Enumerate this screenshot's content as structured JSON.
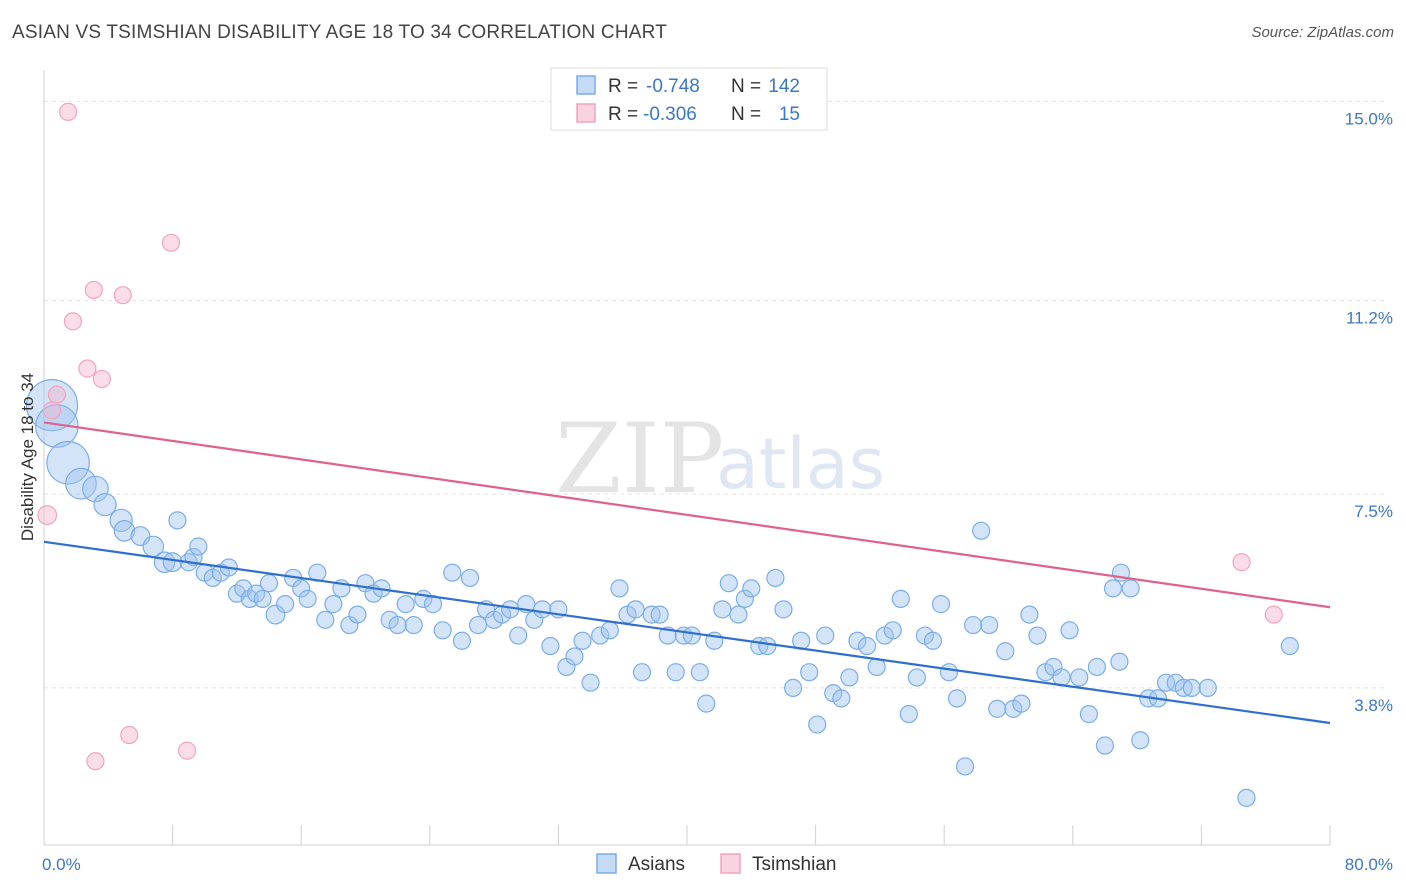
{
  "header": {
    "title": "ASIAN VS TSIMSHIAN DISABILITY AGE 18 TO 34 CORRELATION CHART",
    "source": "Source: ZipAtlas.com"
  },
  "watermark": {
    "zip": "ZIP",
    "atlas": "atlas"
  },
  "legend": {
    "r_label": "R =",
    "n_label": "N =",
    "rows": [
      {
        "r": "-0.748",
        "n": "142",
        "color": "#7aaee8"
      },
      {
        "r": "-0.306",
        "n": "15",
        "color": "#f2a4bd"
      }
    ]
  },
  "chart_data": {
    "type": "scatter",
    "title": "ASIAN VS TSIMSHIAN DISABILITY AGE 18 TO 34 CORRELATION CHART",
    "xlabel": "",
    "ylabel": "Disability Age 18 to 34",
    "xlim": [
      0,
      80
    ],
    "ylim": [
      0.8,
      15.6
    ],
    "x_tick_labels": [
      "0.0%",
      "80.0%"
    ],
    "y_ticks": [
      {
        "value": 3.8,
        "label": "3.8%"
      },
      {
        "value": 7.5,
        "label": "7.5%"
      },
      {
        "value": 11.2,
        "label": "11.2%"
      },
      {
        "value": 15.0,
        "label": "15.0%"
      }
    ],
    "grid": "horizontal dashed",
    "legend_position": "top-center",
    "series": [
      {
        "name": "Asians",
        "color": "#7aaee8",
        "line_color": "#2f6fd0",
        "trend": {
          "x": [
            0,
            80
          ],
          "y": [
            6.59,
            3.13
          ]
        },
        "points": [
          [
            0.5,
            9.2,
            3
          ],
          [
            0.8,
            8.8,
            2.5
          ],
          [
            1.5,
            8.1,
            2.5
          ],
          [
            2.3,
            7.7,
            1.8
          ],
          [
            3.2,
            7.6,
            1.5
          ],
          [
            3.8,
            7.3,
            1.3
          ],
          [
            4.8,
            7.0,
            1.3
          ],
          [
            5.0,
            6.8,
            1.2
          ],
          [
            6.0,
            6.7,
            1.1
          ],
          [
            6.8,
            6.5,
            1.2
          ],
          [
            7.5,
            6.2,
            1.2
          ],
          [
            8.0,
            6.2,
            1.1
          ],
          [
            8.3,
            7.0,
            1.0
          ],
          [
            9.0,
            6.2,
            1.0
          ],
          [
            9.3,
            6.3,
            1.0
          ],
          [
            9.6,
            6.5,
            1.0
          ],
          [
            10.0,
            6.0,
            1.0
          ],
          [
            10.5,
            5.9,
            1.0
          ],
          [
            11.0,
            6.0,
            1.0
          ],
          [
            11.5,
            6.1,
            1.0
          ],
          [
            12.0,
            5.6,
            1.0
          ],
          [
            12.4,
            5.7,
            1.0
          ],
          [
            12.8,
            5.5,
            1.0
          ],
          [
            13.2,
            5.6,
            1.0
          ],
          [
            13.6,
            5.5,
            1.0
          ],
          [
            14.0,
            5.8,
            1.0
          ],
          [
            14.4,
            5.2,
            1.1
          ],
          [
            15.0,
            5.4,
            1.0
          ],
          [
            15.5,
            5.9,
            1.0
          ],
          [
            16.0,
            5.7,
            1.0
          ],
          [
            16.4,
            5.5,
            1.0
          ],
          [
            17.0,
            6.0,
            1.0
          ],
          [
            17.5,
            5.1,
            1.0
          ],
          [
            18.0,
            5.4,
            1.0
          ],
          [
            18.5,
            5.7,
            1.0
          ],
          [
            19.0,
            5.0,
            1.0
          ],
          [
            19.5,
            5.2,
            1.0
          ],
          [
            20.0,
            5.8,
            1.0
          ],
          [
            20.5,
            5.6,
            1.0
          ],
          [
            21.0,
            5.7,
            1.0
          ],
          [
            21.5,
            5.1,
            1.0
          ],
          [
            22.0,
            5.0,
            1.0
          ],
          [
            22.5,
            5.4,
            1.0
          ],
          [
            23.0,
            5.0,
            1.0
          ],
          [
            23.6,
            5.5,
            1.0
          ],
          [
            24.2,
            5.4,
            1.0
          ],
          [
            24.8,
            4.9,
            1.0
          ],
          [
            25.4,
            6.0,
            1.0
          ],
          [
            26.0,
            4.7,
            1.0
          ],
          [
            26.5,
            5.9,
            1.0
          ],
          [
            27.0,
            5.0,
            1.0
          ],
          [
            27.5,
            5.3,
            1.0
          ],
          [
            28.0,
            5.1,
            1.0
          ],
          [
            28.5,
            5.2,
            1.0
          ],
          [
            29.0,
            5.3,
            1.0
          ],
          [
            29.5,
            4.8,
            1.0
          ],
          [
            30.0,
            5.4,
            1.0
          ],
          [
            30.5,
            5.1,
            1.0
          ],
          [
            31.0,
            5.3,
            1.0
          ],
          [
            31.5,
            4.6,
            1.0
          ],
          [
            32.0,
            5.3,
            1.0
          ],
          [
            32.5,
            4.2,
            1.0
          ],
          [
            33.0,
            4.4,
            1.0
          ],
          [
            33.5,
            4.7,
            1.0
          ],
          [
            34.0,
            3.9,
            1.0
          ],
          [
            34.6,
            4.8,
            1.0
          ],
          [
            35.2,
            4.9,
            1.0
          ],
          [
            35.8,
            5.7,
            1.0
          ],
          [
            36.3,
            5.2,
            1.0
          ],
          [
            36.8,
            5.3,
            1.0
          ],
          [
            37.2,
            4.1,
            1.0
          ],
          [
            37.8,
            5.2,
            1.0
          ],
          [
            38.3,
            5.2,
            1.0
          ],
          [
            38.8,
            4.8,
            1.0
          ],
          [
            39.3,
            4.1,
            1.0
          ],
          [
            39.8,
            4.8,
            1.0
          ],
          [
            40.3,
            4.8,
            1.0
          ],
          [
            40.8,
            4.1,
            1.0
          ],
          [
            41.2,
            3.5,
            1.0
          ],
          [
            41.7,
            4.7,
            1.0
          ],
          [
            42.2,
            5.3,
            1.0
          ],
          [
            42.6,
            5.8,
            1.0
          ],
          [
            43.2,
            5.2,
            1.0
          ],
          [
            43.6,
            5.5,
            1.0
          ],
          [
            44.0,
            5.7,
            1.0
          ],
          [
            44.5,
            4.6,
            1.0
          ],
          [
            45.0,
            4.6,
            1.0
          ],
          [
            45.5,
            5.9,
            1.0
          ],
          [
            46.0,
            5.3,
            1.0
          ],
          [
            46.6,
            3.8,
            1.0
          ],
          [
            47.1,
            4.7,
            1.0
          ],
          [
            47.6,
            4.1,
            1.0
          ],
          [
            48.1,
            3.1,
            1.0
          ],
          [
            48.6,
            4.8,
            1.0
          ],
          [
            49.1,
            3.7,
            1.0
          ],
          [
            49.6,
            3.6,
            1.0
          ],
          [
            50.1,
            4.0,
            1.0
          ],
          [
            50.6,
            4.7,
            1.0
          ],
          [
            51.2,
            4.6,
            1.0
          ],
          [
            51.8,
            4.2,
            1.0
          ],
          [
            52.3,
            4.8,
            1.0
          ],
          [
            52.8,
            4.9,
            1.0
          ],
          [
            53.3,
            5.5,
            1.0
          ],
          [
            53.8,
            3.3,
            1.0
          ],
          [
            54.3,
            4.0,
            1.0
          ],
          [
            54.8,
            4.8,
            1.0
          ],
          [
            55.3,
            4.7,
            1.0
          ],
          [
            55.8,
            5.4,
            1.0
          ],
          [
            56.3,
            4.1,
            1.0
          ],
          [
            56.8,
            3.6,
            1.0
          ],
          [
            57.3,
            2.3,
            1.0
          ],
          [
            57.8,
            5.0,
            1.0
          ],
          [
            58.3,
            6.8,
            1.0
          ],
          [
            58.8,
            5.0,
            1.0
          ],
          [
            59.3,
            3.4,
            1.0
          ],
          [
            59.8,
            4.5,
            1.0
          ],
          [
            60.3,
            3.4,
            1.0
          ],
          [
            60.8,
            3.5,
            1.0
          ],
          [
            61.3,
            5.2,
            1.0
          ],
          [
            61.8,
            4.8,
            1.0
          ],
          [
            62.3,
            4.1,
            1.0
          ],
          [
            62.8,
            4.2,
            1.0
          ],
          [
            63.3,
            4.0,
            1.0
          ],
          [
            63.8,
            4.9,
            1.0
          ],
          [
            64.4,
            4.0,
            1.0
          ],
          [
            65.0,
            3.3,
            1.0
          ],
          [
            65.5,
            4.2,
            1.0
          ],
          [
            66.0,
            2.7,
            1.0
          ],
          [
            66.5,
            5.7,
            1.0
          ],
          [
            67.0,
            6.0,
            1.0
          ],
          [
            67.6,
            5.7,
            1.0
          ],
          [
            68.2,
            2.8,
            1.0
          ],
          [
            68.7,
            3.6,
            1.0
          ],
          [
            69.3,
            3.6,
            1.0
          ],
          [
            69.8,
            3.9,
            1.0
          ],
          [
            70.4,
            3.9,
            1.0
          ],
          [
            70.9,
            3.8,
            1.0
          ],
          [
            71.4,
            3.8,
            1.0
          ],
          [
            72.4,
            3.8,
            1.0
          ],
          [
            74.8,
            1.7,
            1.0
          ],
          [
            77.5,
            4.6,
            1.0
          ],
          [
            66.9,
            4.3,
            1.0
          ]
        ]
      },
      {
        "name": "Tsimshian",
        "color": "#f2a4bd",
        "line_color": "#e0628c",
        "trend": {
          "x": [
            0,
            80
          ],
          "y": [
            8.87,
            5.34
          ]
        },
        "points": [
          [
            0.2,
            7.1,
            1.1
          ],
          [
            0.5,
            9.1,
            1.0
          ],
          [
            0.8,
            9.4,
            1.0
          ],
          [
            1.5,
            14.8,
            1.0
          ],
          [
            1.8,
            10.8,
            1.0
          ],
          [
            2.7,
            9.9,
            1.0
          ],
          [
            3.1,
            11.4,
            1.0
          ],
          [
            3.2,
            2.4,
            1.0
          ],
          [
            3.6,
            9.7,
            1.0
          ],
          [
            4.9,
            11.3,
            1.0
          ],
          [
            5.3,
            2.9,
            1.0
          ],
          [
            7.9,
            12.3,
            1.0
          ],
          [
            8.9,
            2.6,
            1.0
          ],
          [
            74.5,
            6.2,
            1.0
          ],
          [
            76.5,
            5.2,
            1.0
          ]
        ]
      }
    ]
  }
}
